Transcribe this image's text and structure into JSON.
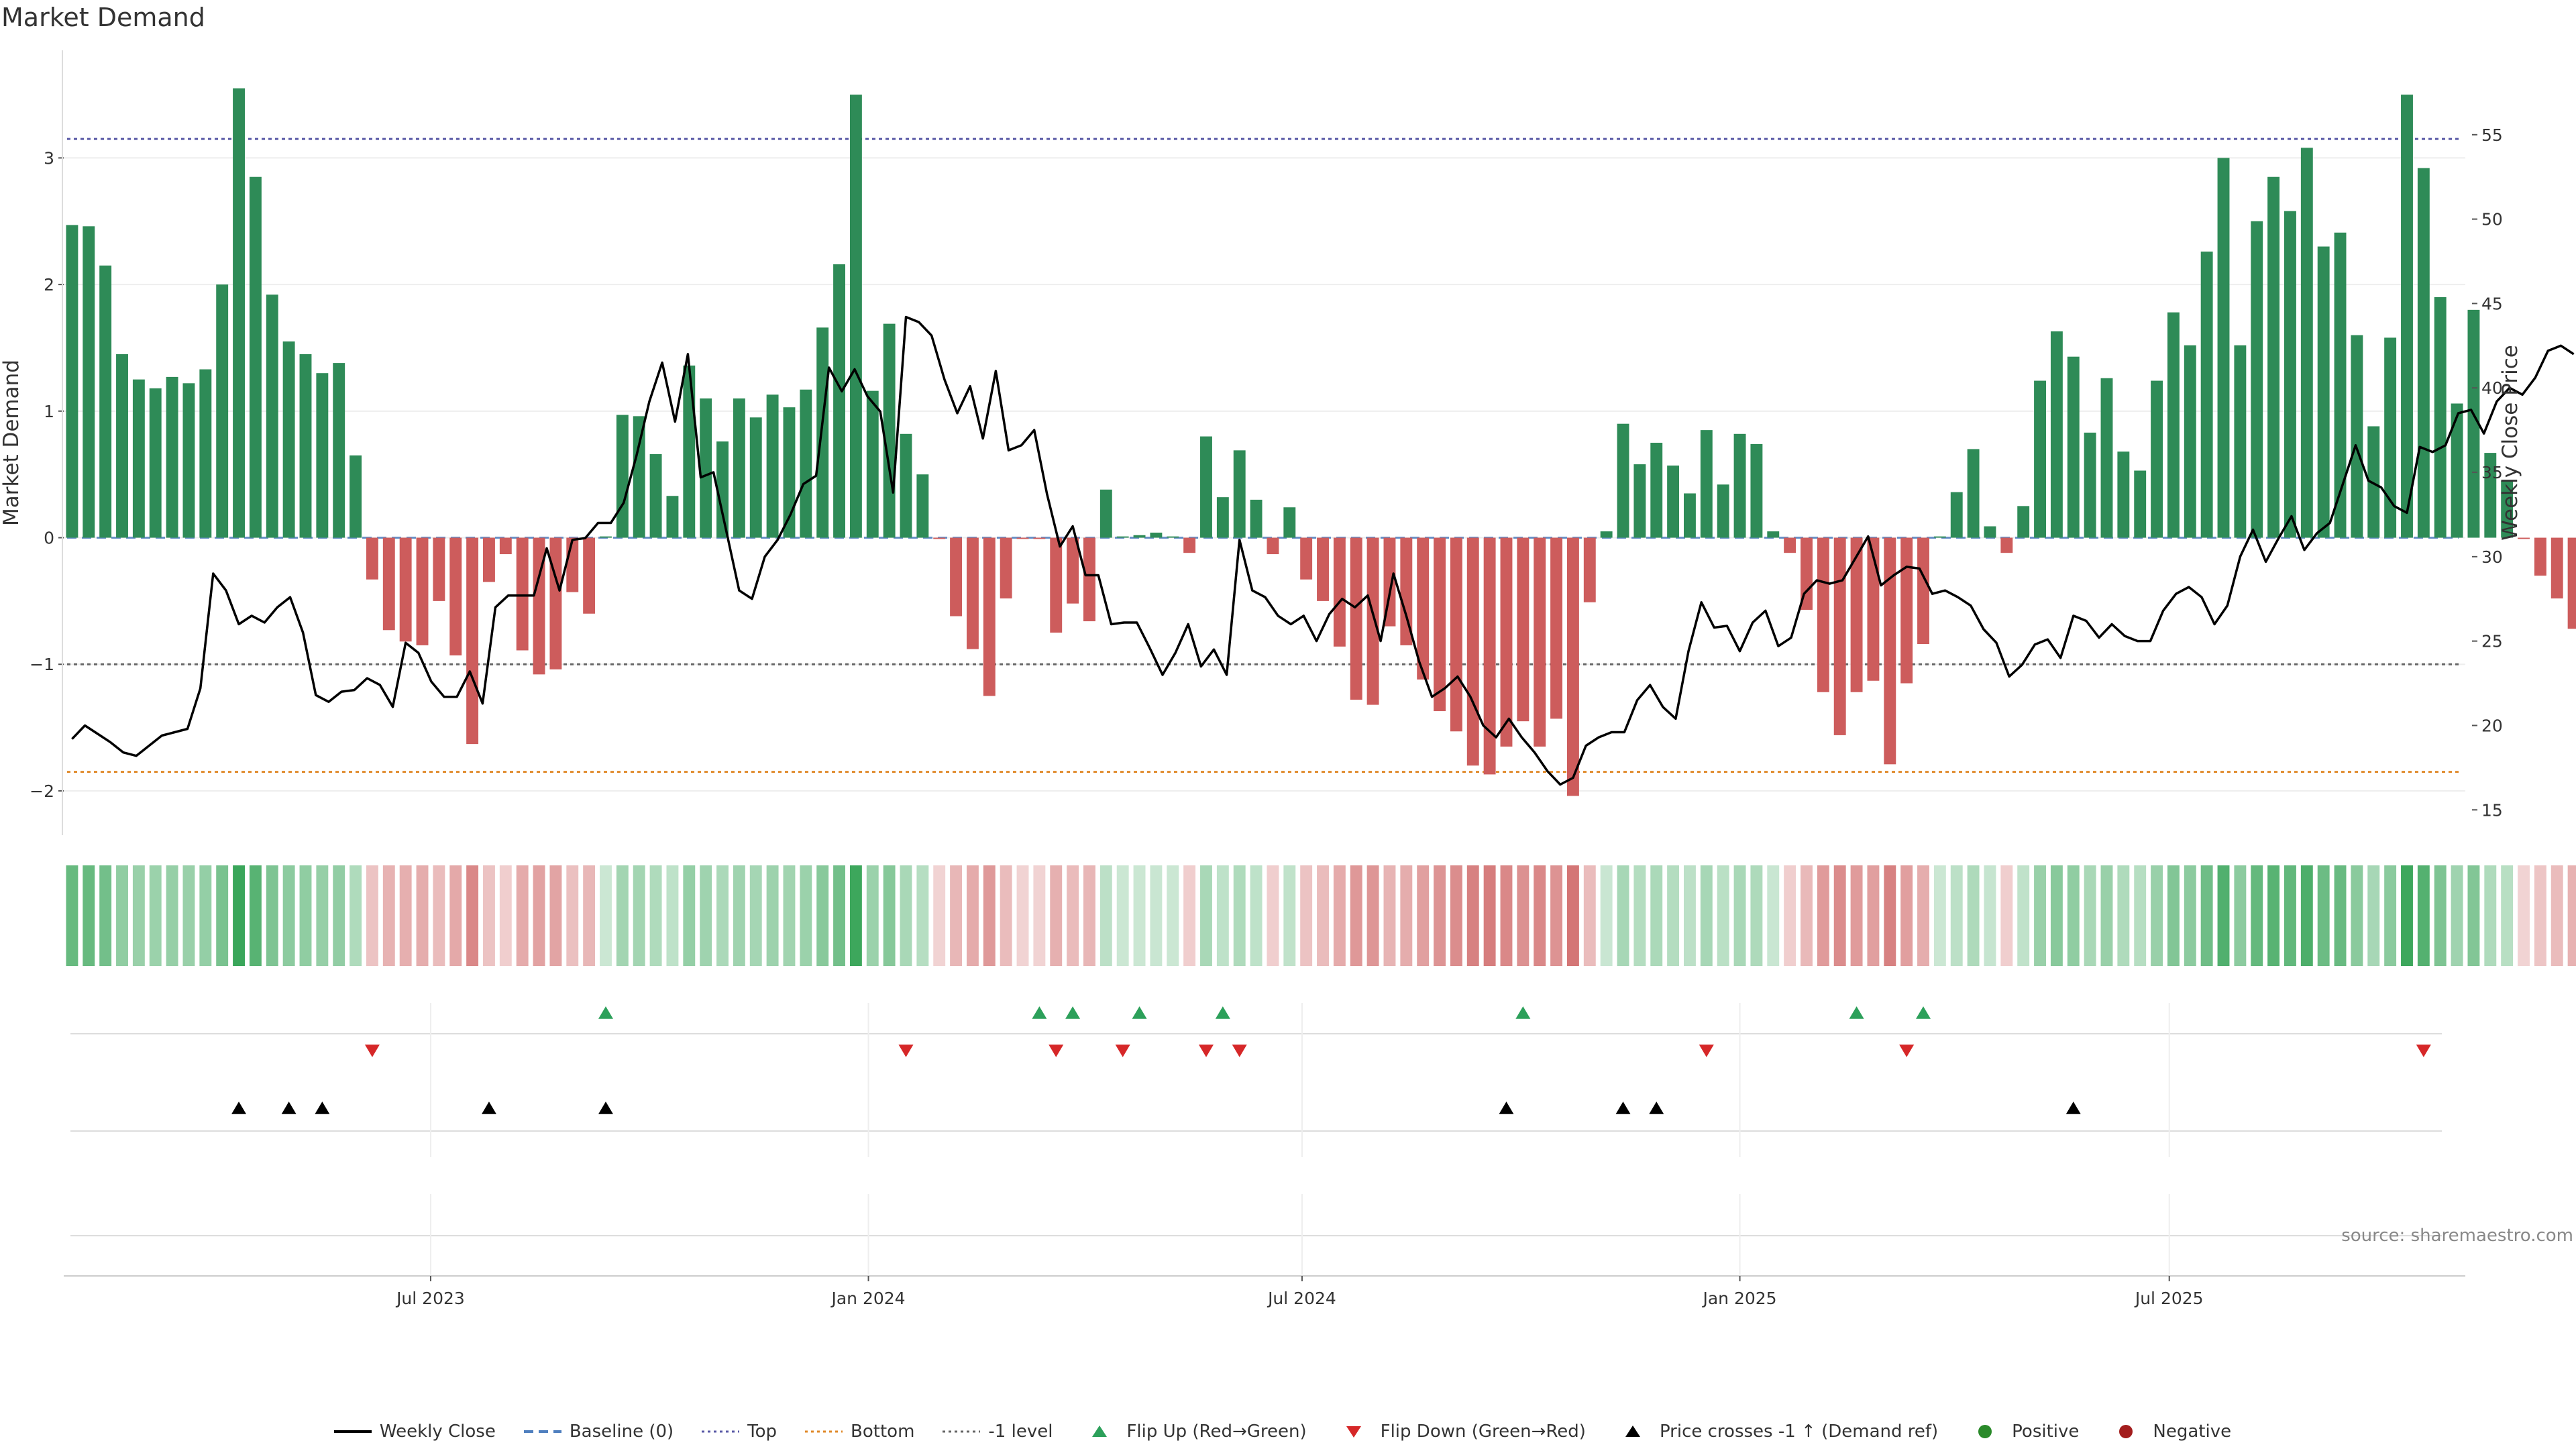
{
  "chart_data": {
    "type": "bar",
    "title": "Market Demand",
    "ylabel": "Market Demand",
    "y2label": "Weekly Close Price",
    "ylim": [
      -2.35,
      3.85
    ],
    "y2lim": [
      13.5,
      60.0
    ],
    "yticks": [
      -2,
      -1,
      0,
      1,
      2,
      3
    ],
    "y2ticks": [
      15,
      20,
      25,
      30,
      35,
      40,
      45,
      50,
      55
    ],
    "xlim": [
      0,
      144
    ],
    "xticks": [
      {
        "pos": 22,
        "label": "Jul 2023"
      },
      {
        "pos": 48.25,
        "label": "Jan 2024"
      },
      {
        "pos": 74.25,
        "label": "Jul 2024"
      },
      {
        "pos": 100.5,
        "label": "Jan 2025"
      },
      {
        "pos": 126.25,
        "label": "Jul 2025"
      }
    ],
    "reference_lines": {
      "top": 3.15,
      "bottom": -1.85,
      "minus_one": -1.0,
      "baseline": 0
    },
    "demand": [
      2.47,
      2.46,
      2.15,
      1.45,
      1.25,
      1.18,
      1.27,
      1.22,
      1.33,
      2.0,
      3.55,
      2.85,
      1.92,
      1.55,
      1.45,
      1.3,
      1.38,
      0.65,
      -0.33,
      -0.73,
      -0.82,
      -0.85,
      -0.5,
      -0.93,
      -1.63,
      -0.35,
      -0.13,
      -0.89,
      -1.08,
      -1.04,
      -0.43,
      -0.6,
      0.01,
      0.97,
      0.96,
      0.66,
      0.33,
      1.36,
      1.1,
      0.76,
      1.1,
      0.95,
      1.13,
      1.03,
      1.17,
      1.66,
      2.16,
      3.5,
      1.16,
      1.69,
      0.82,
      0.5,
      -0.01,
      -0.62,
      -0.88,
      -1.25,
      -0.48,
      -0.01,
      -0.01,
      -0.75,
      -0.52,
      -0.66,
      0.38,
      0.01,
      0.02,
      0.04,
      0.01,
      -0.12,
      0.8,
      0.32,
      0.69,
      0.3,
      -0.13,
      0.24,
      -0.33,
      -0.5,
      -0.86,
      -1.28,
      -1.32,
      -0.7,
      -0.85,
      -1.12,
      -1.37,
      -1.53,
      -1.8,
      -1.87,
      -1.65,
      -1.45,
      -1.65,
      -1.43,
      -2.04,
      -0.51,
      0.05,
      0.9,
      0.58,
      0.75,
      0.57,
      0.35,
      0.85,
      0.42,
      0.82,
      0.74,
      0.05,
      -0.12,
      -0.57,
      -1.22,
      -1.56,
      -1.22,
      -1.13,
      -1.79,
      -1.15,
      -0.84,
      0.01,
      0.36,
      0.7,
      0.09,
      -0.12,
      0.25,
      1.24,
      1.63,
      1.43,
      0.83,
      1.26,
      0.68,
      0.53,
      1.24,
      1.78,
      1.52,
      2.26,
      3.0,
      1.52,
      2.5,
      2.85,
      2.58,
      3.08,
      2.3,
      2.41,
      1.6,
      0.88,
      1.58,
      3.5,
      2.92,
      1.9,
      1.06,
      1.8,
      0.67,
      0.45,
      -0.01,
      -0.3,
      -0.48,
      -0.72
    ],
    "close": [
      19.2,
      20.0,
      19.5,
      19.0,
      18.4,
      18.2,
      18.8,
      19.4,
      19.6,
      19.8,
      22.2,
      29.0,
      28.0,
      26.0,
      26.5,
      26.1,
      27.0,
      27.6,
      25.5,
      21.8,
      21.4,
      22.0,
      22.1,
      22.8,
      22.4,
      21.1,
      24.9,
      24.3,
      22.6,
      21.7,
      21.7,
      23.2,
      21.3,
      27.0,
      27.7,
      27.7,
      27.7,
      30.5,
      28.0,
      31.0,
      31.1,
      32.0,
      32.0,
      33.2,
      36.0,
      39.2,
      41.5,
      38.0,
      42.0,
      34.7,
      35.0,
      31.5,
      28.0,
      27.5,
      30.0,
      31.0,
      32.5,
      34.3,
      34.8,
      41.2,
      39.8,
      41.1,
      39.5,
      38.6,
      33.8,
      44.2,
      43.9,
      43.1,
      40.5,
      38.5,
      40.1,
      37.0,
      41.0,
      36.3,
      36.6,
      37.5,
      33.7,
      30.6,
      31.8,
      28.9,
      28.9,
      26.0,
      26.1,
      26.1,
      24.6,
      23.0,
      24.3,
      26.0,
      23.5,
      24.5,
      23.0,
      31.0,
      28.0,
      27.6,
      26.5,
      26.0,
      26.5,
      25.0,
      26.6,
      27.5,
      27.0,
      27.7,
      25.0,
      29.0,
      26.5,
      23.8,
      21.7,
      22.2,
      22.9,
      21.7,
      20.0,
      19.3,
      20.4,
      19.3,
      18.4,
      17.3,
      16.5,
      16.9,
      18.8,
      19.3,
      19.6,
      19.6,
      21.5,
      22.4,
      21.1,
      20.4,
      24.4,
      27.3,
      25.8,
      25.9,
      24.4,
      26.1,
      26.8,
      24.7,
      25.2,
      27.8,
      28.6,
      28.4,
      28.6,
      29.9,
      31.2,
      28.3,
      28.9,
      29.4,
      29.3,
      27.8,
      28.0,
      27.6,
      27.1,
      25.7,
      24.9,
      22.9,
      23.6,
      24.8,
      25.1,
      24.0,
      26.5,
      26.2,
      25.2,
      26.0,
      25.3,
      25.0,
      25.0,
      26.8,
      27.8,
      28.2,
      27.6,
      26.0,
      27.1,
      30.0,
      31.6,
      29.7,
      31.1,
      32.4,
      30.4,
      31.4,
      32.0,
      34.3,
      36.6,
      34.5,
      34.1,
      33.0,
      32.6,
      36.5,
      36.2,
      36.6,
      38.5,
      38.7,
      37.3,
      39.2,
      40.0,
      39.6,
      40.6,
      42.2,
      42.5,
      42.0
    ],
    "flip_up_idx": [
      32,
      58,
      60,
      64,
      69,
      87,
      107,
      111
    ],
    "flip_down_idx": [
      18,
      50,
      59,
      63,
      68,
      70,
      98,
      110,
      141
    ],
    "cross_idx": [
      10,
      13,
      15,
      25,
      32,
      86,
      93,
      95,
      120
    ],
    "series": [
      {
        "name": "Weekly Close"
      },
      {
        "name": "Baseline (0)"
      },
      {
        "name": "Top"
      },
      {
        "name": "Bottom"
      },
      {
        "name": "-1 level"
      }
    ]
  },
  "source": "source: sharemaestro.com",
  "legend": [
    {
      "label": "Weekly Close",
      "kind": "line",
      "color": "#000000"
    },
    {
      "label": "Baseline (0)",
      "kind": "dash",
      "color": "#4f7fbf"
    },
    {
      "label": "Top",
      "kind": "dot",
      "color": "#5a5aa6"
    },
    {
      "label": "Bottom",
      "kind": "dot",
      "color": "#e08a2a"
    },
    {
      "label": "-1 level",
      "kind": "dot",
      "color": "#666666"
    },
    {
      "label": "Flip Up (Red→Green)",
      "kind": "tri-up",
      "color": "#2ca05a"
    },
    {
      "label": "Flip Down (Green→Red)",
      "kind": "tri-down",
      "color": "#d62728"
    },
    {
      "label": "Price crosses -1 ↑ (Demand ref)",
      "kind": "tri-up",
      "color": "#000000"
    },
    {
      "label": "Positive",
      "kind": "dot-marker",
      "color": "#2a8a2a"
    },
    {
      "label": "Negative",
      "kind": "dot-marker",
      "color": "#a31d1d"
    }
  ],
  "colors": {
    "positive_bar": "#2e8b57",
    "negative_bar": "#cd5c5c",
    "line": "#000000"
  }
}
